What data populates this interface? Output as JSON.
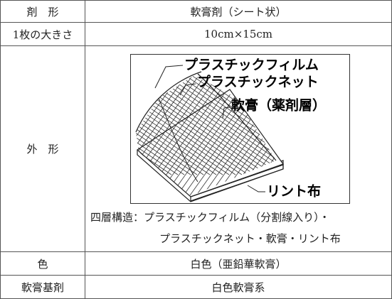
{
  "table": {
    "rows": [
      [
        "剤　形",
        "軟膏剤（シート状）"
      ],
      [
        "1枚の大きさ",
        "10cm×15cm"
      ],
      [
        "外　形",
        ""
      ],
      [
        "色",
        "白色（亜鉛華軟膏）"
      ],
      [
        "軟膏基剤",
        "白色軟膏系"
      ]
    ]
  },
  "diagram": {
    "labels": [
      "プラスチックフィルム",
      "プラスチックネット",
      "軟膏（薬剤層）",
      "リント布"
    ],
    "caption": [
      "四層構造：プラスチックフィルム（分割線入り）・",
      "プラスチックネット・軟膏・リント布"
    ]
  }
}
